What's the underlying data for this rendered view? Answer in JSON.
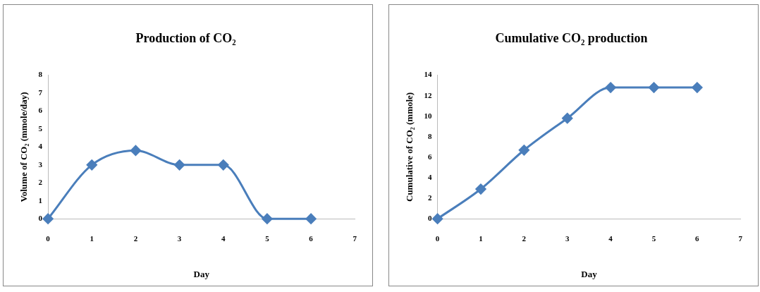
{
  "chart_data": [
    {
      "type": "line",
      "title": "Production of CO₂",
      "xlabel": "Day",
      "ylabel": "Volume of CO₂ (mmole/day)",
      "x": [
        0,
        1,
        2,
        3,
        4,
        5,
        6
      ],
      "series": [
        {
          "color": "#4a7ebb",
          "values": [
            0,
            3,
            3.8,
            3,
            3,
            0,
            0
          ]
        }
      ],
      "xlim": [
        0,
        7
      ],
      "xticks": [
        0,
        1,
        2,
        3,
        4,
        5,
        6,
        7
      ],
      "ylim": [
        0,
        8
      ],
      "yticks": [
        0,
        1,
        2,
        3,
        4,
        5,
        6,
        7,
        8
      ],
      "grid": false,
      "legend": false,
      "marker": "diamond",
      "line_style": "solid"
    },
    {
      "type": "line",
      "title": "Cumulative CO₂ production",
      "xlabel": "Day",
      "ylabel": "Cumulative of CO₂ (mmole)",
      "x": [
        0,
        1,
        2,
        3,
        4,
        5,
        6
      ],
      "series": [
        {
          "color": "#4a7ebb",
          "values": [
            0,
            2.9,
            6.7,
            9.8,
            12.8,
            12.8,
            12.8
          ]
        }
      ],
      "xlim": [
        0,
        7
      ],
      "xticks": [
        0,
        1,
        2,
        3,
        4,
        5,
        6,
        7
      ],
      "ylim": [
        0,
        14
      ],
      "yticks": [
        0,
        2,
        4,
        6,
        8,
        10,
        12,
        14
      ],
      "grid": false,
      "legend": false,
      "marker": "diamond",
      "line_style": "solid"
    }
  ]
}
